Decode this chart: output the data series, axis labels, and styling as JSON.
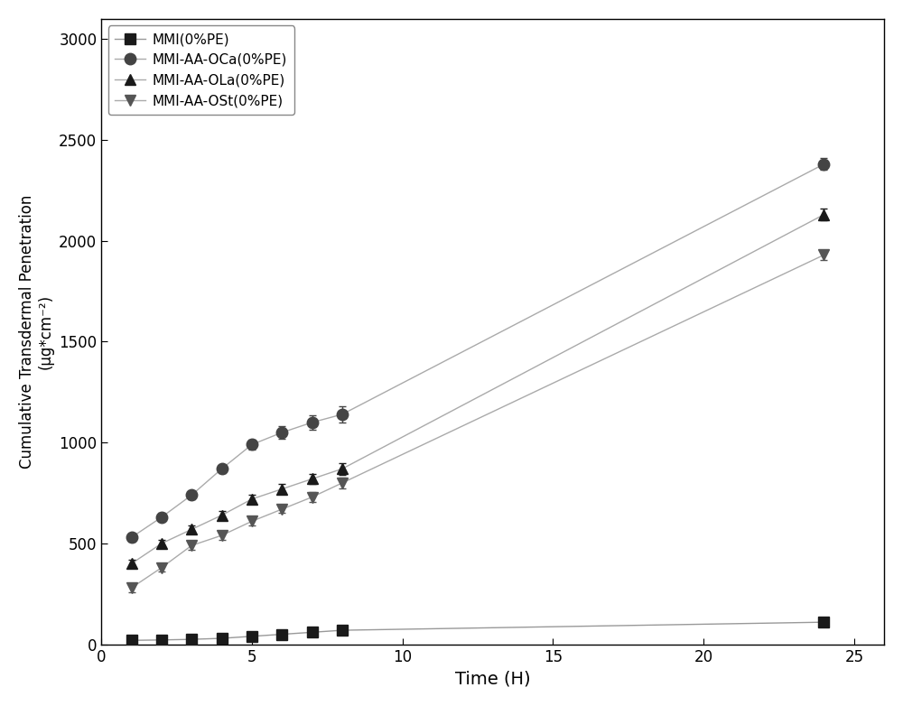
{
  "series": [
    {
      "label": "MMI(0%PE)",
      "marker": "s",
      "marker_color": "#1a1a1a",
      "line_color": "#999999",
      "x": [
        1,
        2,
        3,
        4,
        5,
        6,
        7,
        8,
        24
      ],
      "y": [
        20,
        22,
        25,
        30,
        40,
        50,
        60,
        70,
        110
      ],
      "yerr": [
        3,
        3,
        3,
        3,
        3,
        4,
        4,
        5,
        8
      ]
    },
    {
      "label": "MMI-AA-OCa(0%PE)",
      "marker": "o",
      "marker_color": "#444444",
      "line_color": "#aaaaaa",
      "x": [
        1,
        2,
        3,
        4,
        5,
        6,
        7,
        8,
        24
      ],
      "y": [
        530,
        630,
        740,
        870,
        990,
        1050,
        1100,
        1140,
        2380
      ],
      "yerr": [
        20,
        20,
        20,
        20,
        25,
        30,
        35,
        40,
        30
      ]
    },
    {
      "label": "MMI-AA-OLa(0%PE)",
      "marker": "^",
      "marker_color": "#1a1a1a",
      "line_color": "#aaaaaa",
      "x": [
        1,
        2,
        3,
        4,
        5,
        6,
        7,
        8,
        24
      ],
      "y": [
        400,
        500,
        570,
        640,
        720,
        770,
        820,
        870,
        2130
      ],
      "yerr": [
        20,
        20,
        20,
        20,
        20,
        25,
        25,
        30,
        30
      ]
    },
    {
      "label": "MMI-AA-OSt(0%PE)",
      "marker": "v",
      "marker_color": "#555555",
      "line_color": "#aaaaaa",
      "x": [
        1,
        2,
        3,
        4,
        5,
        6,
        7,
        8,
        24
      ],
      "y": [
        280,
        380,
        490,
        540,
        610,
        670,
        730,
        800,
        1930
      ],
      "yerr": [
        20,
        20,
        20,
        20,
        20,
        20,
        25,
        25,
        25
      ]
    }
  ],
  "xlabel": "Time (H)",
  "ylabel": "Cumulative Transdermal Penetration（μg*cm⁻²）",
  "xlim": [
    0,
    26
  ],
  "ylim": [
    0,
    3100
  ],
  "xticks": [
    0,
    5,
    10,
    15,
    20,
    25
  ],
  "yticks": [
    0,
    500,
    1000,
    1500,
    2000,
    2500,
    3000
  ],
  "background_color": "#ffffff",
  "marker_size": 9,
  "line_width": 1.0,
  "capsize": 3
}
